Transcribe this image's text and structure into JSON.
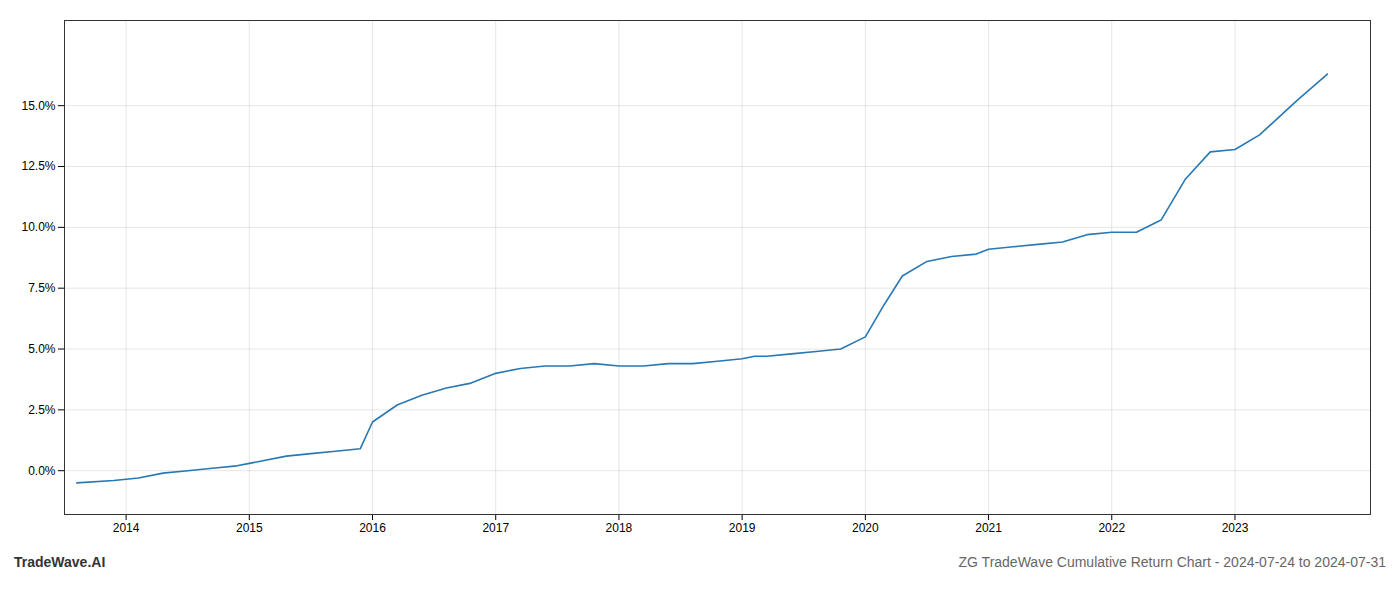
{
  "chart_data": {
    "type": "line",
    "title": "ZG TradeWave Cumulative Return Chart - 2024-07-24 to 2024-07-31",
    "annotations": [
      "TradeWave.AI"
    ],
    "color": "#2878b5",
    "x": [
      2013.6,
      2013.9,
      2014.1,
      2014.3,
      2014.5,
      2014.7,
      2014.9,
      2015.0,
      2015.1,
      2015.3,
      2015.5,
      2015.7,
      2015.9,
      2016.0,
      2016.2,
      2016.4,
      2016.6,
      2016.8,
      2017.0,
      2017.2,
      2017.4,
      2017.6,
      2017.8,
      2018.0,
      2018.2,
      2018.4,
      2018.6,
      2018.8,
      2019.0,
      2019.1,
      2019.2,
      2019.4,
      2019.6,
      2019.8,
      2020.0,
      2020.15,
      2020.3,
      2020.5,
      2020.7,
      2020.9,
      2021.0,
      2021.2,
      2021.4,
      2021.6,
      2021.8,
      2022.0,
      2022.2,
      2022.4,
      2022.6,
      2022.8,
      2023.0,
      2023.2,
      2023.5,
      2023.75
    ],
    "values": [
      -0.005,
      -0.004,
      -0.003,
      -0.001,
      0.0,
      0.001,
      0.002,
      0.003,
      0.004,
      0.006,
      0.007,
      0.008,
      0.009,
      0.02,
      0.027,
      0.031,
      0.034,
      0.036,
      0.04,
      0.042,
      0.043,
      0.043,
      0.044,
      0.043,
      0.043,
      0.044,
      0.044,
      0.045,
      0.046,
      0.047,
      0.047,
      0.048,
      0.049,
      0.05,
      0.055,
      0.068,
      0.08,
      0.086,
      0.088,
      0.089,
      0.091,
      0.092,
      0.093,
      0.094,
      0.097,
      0.098,
      0.098,
      0.103,
      0.12,
      0.131,
      0.132,
      0.138,
      0.152,
      0.163
    ],
    "xlim": [
      2013.5,
      2024.1
    ],
    "xticks": [
      2014,
      2015,
      2016,
      2017,
      2018,
      2019,
      2020,
      2021,
      2022,
      2023
    ],
    "ylim": [
      -0.018,
      0.185
    ],
    "yticks": [
      {
        "value": 0.0,
        "label": "0.0%"
      },
      {
        "value": 0.025,
        "label": "2.5%"
      },
      {
        "value": 0.05,
        "label": "5.0%"
      },
      {
        "value": 0.075,
        "label": "7.5%"
      },
      {
        "value": 0.1,
        "label": "10.0%"
      },
      {
        "value": 0.125,
        "label": "12.5%"
      },
      {
        "value": 0.15,
        "label": "15.0%"
      }
    ],
    "grid": true
  }
}
